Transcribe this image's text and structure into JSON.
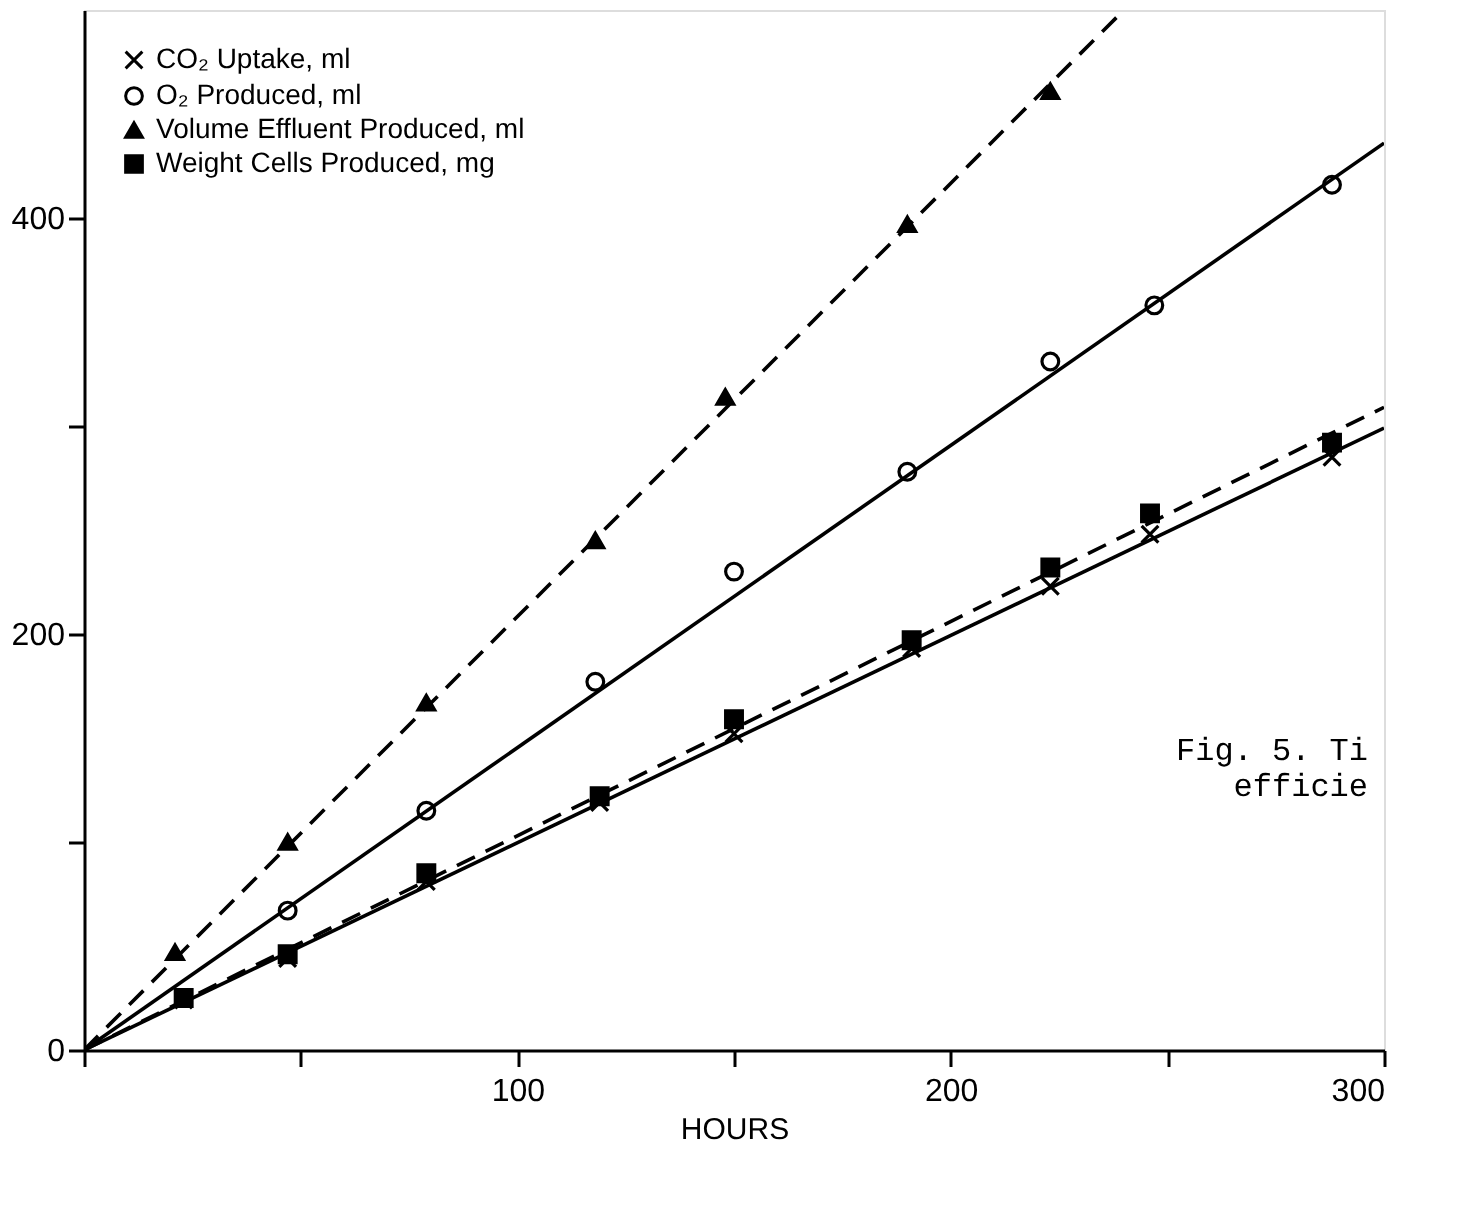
{
  "chart_data": {
    "type": "scatter",
    "xlabel": "HOURS",
    "xlim": [
      0,
      300
    ],
    "ylim": [
      0,
      500
    ],
    "xticks": [
      {
        "value": 0,
        "label": null
      },
      {
        "value": 50,
        "label": null
      },
      100,
      {
        "value": 150,
        "label": null
      },
      200,
      {
        "value": 250,
        "label": null
      },
      300
    ],
    "yticks": [
      0,
      {
        "value": 100,
        "label": null
      },
      200,
      {
        "value": 300,
        "label": null
      },
      400
    ],
    "grid": false,
    "legend": "top left",
    "annotations": [
      "Fig. 5.  Ti",
      "efficie"
    ],
    "series": [
      {
        "name": "CO₂ Uptake, ml",
        "color": "#000000",
        "marker": "cross",
        "x": [
          23,
          47,
          79,
          119,
          150,
          191,
          223,
          246,
          288
        ],
        "values": [
          24,
          44,
          81,
          119,
          152,
          193,
          223,
          248,
          285
        ]
      },
      {
        "name": "O₂ Produced, ml",
        "color": "#000000",
        "marker": "circle",
        "x": [
          47,
          79,
          118,
          150,
          190,
          223,
          247,
          288
        ],
        "values": [
          67,
          115,
          177,
          230,
          278,
          331,
          358,
          416
        ]
      },
      {
        "name": "Volume Effluent Produced, ml",
        "color": "#000000",
        "marker": "triangle",
        "x": [
          21,
          47,
          79,
          118,
          148,
          190,
          223
        ],
        "values": [
          47,
          100,
          167,
          245,
          314,
          397,
          461
        ]
      },
      {
        "name": "Weight Cells Produced, mg",
        "color": "#000000",
        "marker": "square",
        "x": [
          23,
          47,
          79,
          119,
          150,
          191,
          223,
          246,
          288
        ],
        "values": [
          25,
          46,
          85,
          122,
          159,
          197,
          232,
          258,
          292
        ]
      },
      {
        "type": "line",
        "color": "#000000",
        "line_style": "solid",
        "x": [
          0,
          300
        ],
        "values": [
          0,
          299
        ]
      },
      {
        "type": "line",
        "color": "#000000",
        "line_style": "solid",
        "x": [
          0,
          300
        ],
        "values": [
          0,
          436
        ]
      },
      {
        "type": "line",
        "color": "#000000",
        "line_style": "dashed",
        "x": [
          0,
          240
        ],
        "values": [
          0,
          500
        ]
      },
      {
        "type": "line",
        "color": "#000000",
        "line_style": "dashed",
        "x": [
          0,
          300
        ],
        "values": [
          0,
          309
        ]
      }
    ]
  }
}
